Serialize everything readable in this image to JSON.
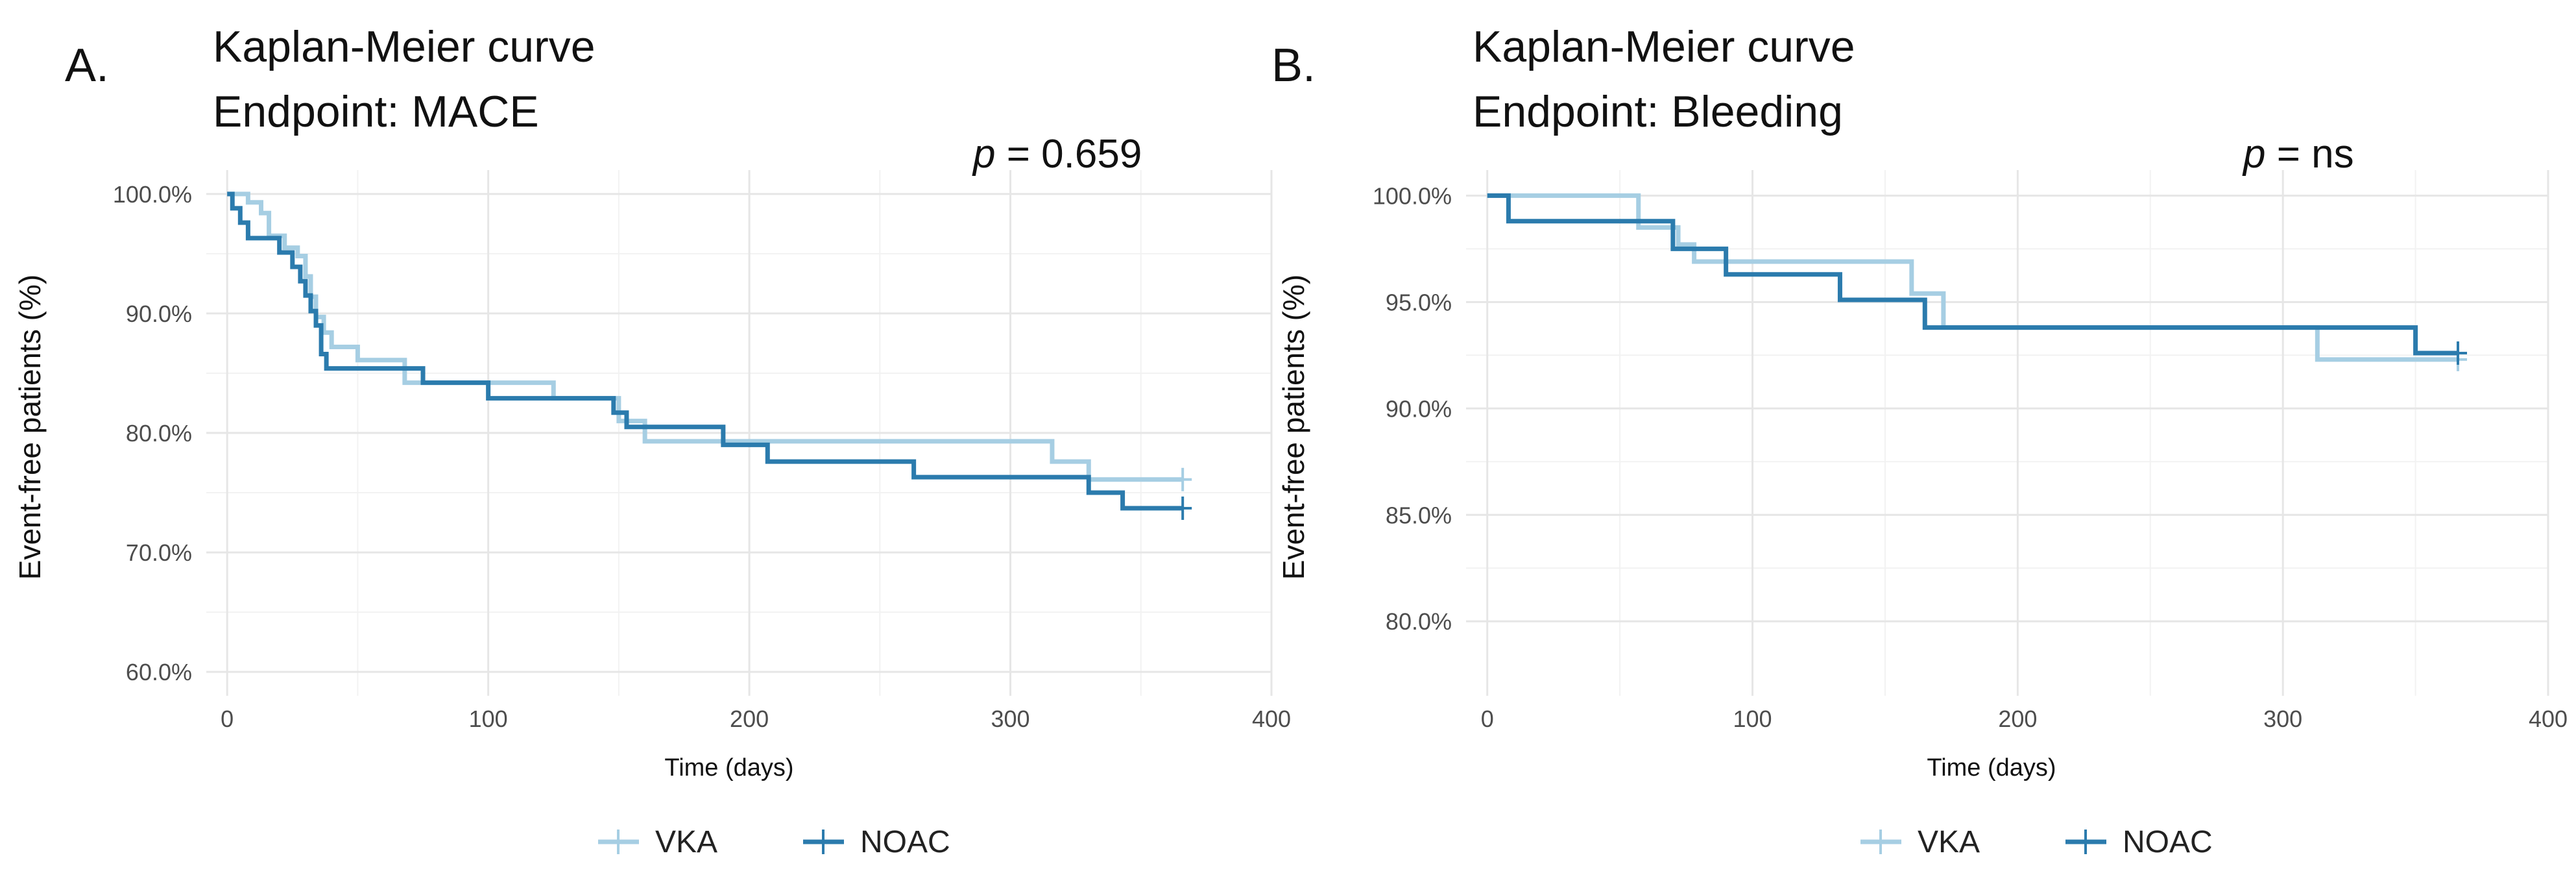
{
  "panels": [
    {
      "panel_label": "A.",
      "title_line1": "Kaplan-Meier curve",
      "title_line2": "Endpoint: MACE",
      "p_symbol": "p",
      "p_text": " = 0.659"
    },
    {
      "panel_label": "B.",
      "title_line1": "Kaplan-Meier curve",
      "title_line2": "Endpoint: Bleeding",
      "p_symbol": "p",
      "p_text": " = ns"
    }
  ],
  "colors": {
    "VKA": "#a6cee3",
    "NOAC": "#2b7bad"
  },
  "chart_data": [
    {
      "type": "line",
      "step": true,
      "title": "Kaplan-Meier curve Endpoint: MACE",
      "xlabel": "Time (days)",
      "ylabel": "Event-free patients (%)",
      "xlim": [
        -8,
        400
      ],
      "ylim": [
        58,
        102
      ],
      "xticks": [
        0,
        100,
        200,
        300,
        400
      ],
      "xtick_labels": [
        "0",
        "100",
        "200",
        "300",
        "400"
      ],
      "yticks": [
        60,
        70,
        80,
        90,
        100
      ],
      "ytick_labels": [
        "60.0%",
        "70.0%",
        "80.0%",
        "90.0%",
        "100.0%"
      ],
      "grid": true,
      "legend_position": "bottom",
      "series": [
        {
          "name": "VKA",
          "x": [
            0,
            8,
            13,
            16,
            22,
            27,
            30,
            32,
            34,
            37,
            40,
            50,
            68,
            100,
            125,
            150,
            160,
            200,
            225,
            250,
            316,
            330,
            366
          ],
          "y": [
            100,
            99.3,
            98.4,
            96.5,
            95.5,
            94.8,
            93.1,
            91.4,
            89.7,
            88.4,
            87.2,
            86.1,
            84.2,
            84.2,
            82.9,
            81.0,
            79.3,
            79.3,
            79.3,
            79.3,
            77.6,
            76.1,
            76.1
          ]
        },
        {
          "name": "NOAC",
          "x": [
            0,
            2,
            5,
            8,
            20,
            25,
            28,
            30,
            32,
            34,
            36,
            38,
            75,
            100,
            120,
            148,
            153,
            190,
            207,
            263,
            330,
            343,
            366
          ],
          "y": [
            100,
            98.8,
            97.6,
            96.3,
            95.1,
            93.9,
            92.7,
            91.5,
            90.2,
            89.0,
            86.6,
            85.4,
            84.2,
            82.9,
            82.9,
            81.7,
            80.5,
            79.0,
            77.6,
            76.3,
            75.0,
            73.7,
            73.7
          ]
        }
      ]
    },
    {
      "type": "line",
      "step": true,
      "title": "Kaplan-Meier curve Endpoint: Bleeding",
      "xlabel": "Time (days)",
      "ylabel": "Event-free patients (%)",
      "xlim": [
        -8,
        400
      ],
      "ylim": [
        76.5,
        101.2
      ],
      "xticks": [
        0,
        100,
        200,
        300,
        400
      ],
      "xtick_labels": [
        "0",
        "100",
        "200",
        "300",
        "400"
      ],
      "yticks": [
        80,
        85,
        90,
        95,
        100
      ],
      "ytick_labels": [
        "80.0%",
        "85.0%",
        "90.0%",
        "95.0%",
        "100.0%"
      ],
      "grid": true,
      "legend_position": "bottom",
      "series": [
        {
          "name": "VKA",
          "x": [
            0,
            57,
            72,
            78,
            160,
            172,
            313,
            366
          ],
          "y": [
            100,
            98.5,
            97.7,
            96.9,
            95.4,
            93.8,
            92.3,
            92.3
          ]
        },
        {
          "name": "NOAC",
          "x": [
            0,
            8,
            70,
            90,
            133,
            165,
            350,
            366
          ],
          "y": [
            100,
            98.8,
            97.5,
            96.3,
            95.1,
            93.8,
            92.6,
            92.6
          ]
        }
      ]
    }
  ]
}
